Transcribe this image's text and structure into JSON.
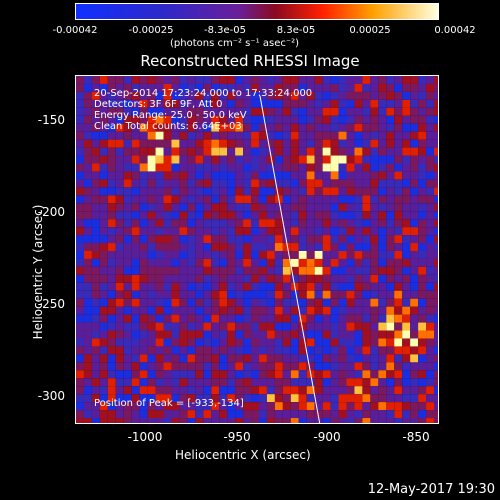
{
  "colorbar": {
    "ticks": [
      "-0.00042",
      "-0.00025",
      "-8.3e-05",
      "8.3e-05",
      "0.00025",
      "0.00042"
    ],
    "units": "(photons cm⁻² s⁻¹ asec⁻²)"
  },
  "title": "Reconstructed RHESSI Image",
  "info": {
    "time": "20-Sep-2014 17:23:24.000 to 17:33:24.000",
    "detectors": "Detectors: 3F 6F 9F, Att 0",
    "energy": "Energy Range: 25.0 - 50.0 keV",
    "clean": "Clean     Total counts: 6.64E+03"
  },
  "peak": "Position of Peak = [-933,-134]",
  "axes": {
    "x_label": "Heliocentric X (arcsec)",
    "y_label": "Heliocentric Y (arcsec)",
    "x_ticks": [
      "-1000",
      "-950",
      "-900",
      "-850"
    ],
    "y_ticks": [
      "-150",
      "-200",
      "-250",
      "-300"
    ]
  },
  "date_stamp": "12-May-2017 19:30",
  "colors": {
    "negative": "#1020ff",
    "mid": "#5a209a",
    "positive": "#ff2000",
    "peak": "#ffffa0"
  }
}
